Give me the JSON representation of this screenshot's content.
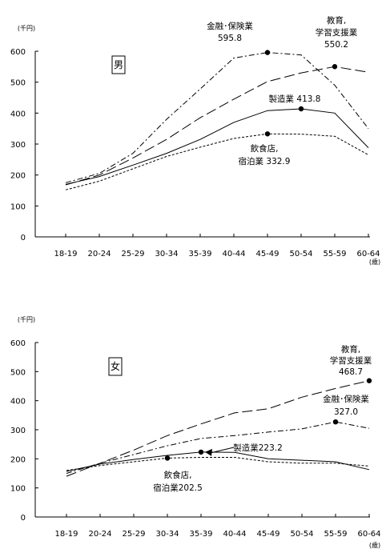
{
  "chart_data": [
    {
      "type": "line",
      "panel_label": "男",
      "y_unit": "(千円)",
      "x_unit": "(歳)",
      "ylim": [
        0,
        600
      ],
      "yticks": [
        0,
        100,
        200,
        300,
        400,
        500,
        600
      ],
      "grid": false,
      "categories": [
        "18-19",
        "20-24",
        "25-29",
        "30-34",
        "35-39",
        "40-44",
        "45-49",
        "50-54",
        "55-59",
        "60-64"
      ],
      "series": [
        {
          "key": "finance",
          "values": [
            175,
            205,
            270,
            380,
            478,
            578,
            595.8,
            588,
            490,
            350
          ]
        },
        {
          "key": "education",
          "values": [
            168,
            200,
            255,
            315,
            385,
            445,
            502,
            530,
            550.2,
            532
          ]
        },
        {
          "key": "manufacturing",
          "values": [
            170,
            195,
            232,
            270,
            315,
            370,
            408,
            413.8,
            400,
            288
          ]
        },
        {
          "key": "food",
          "values": [
            152,
            180,
            220,
            260,
            290,
            318,
            332.9,
            332,
            325,
            265
          ]
        }
      ],
      "annotations": [
        {
          "series": "finance",
          "x": "45-49",
          "lines": [
            "金融･保険業",
            "595.8"
          ]
        },
        {
          "series": "education",
          "x": "55-59",
          "lines": [
            "教育,",
            "学習支援業",
            "550.2"
          ]
        },
        {
          "series": "manufacturing",
          "x": "50-54",
          "lines": [
            "製造業 413.8"
          ]
        },
        {
          "series": "food",
          "x": "45-49",
          "lines": [
            "飲食店,",
            "宿泊業 332.9"
          ]
        }
      ]
    },
    {
      "type": "line",
      "panel_label": "女",
      "y_unit": "(千円)",
      "x_unit": "(歳)",
      "ylim": [
        0,
        600
      ],
      "yticks": [
        0,
        100,
        200,
        300,
        400,
        500,
        600
      ],
      "grid": false,
      "categories": [
        "18-19",
        "20-24",
        "25-29",
        "30-34",
        "35-39",
        "40-44",
        "45-49",
        "50-54",
        "55-59",
        "60-64"
      ],
      "series": [
        {
          "key": "education",
          "values": [
            140,
            185,
            230,
            280,
            320,
            358,
            372,
            412,
            442,
            468.7
          ]
        },
        {
          "key": "finance",
          "values": [
            150,
            185,
            215,
            245,
            270,
            280,
            292,
            303,
            327.0,
            305
          ]
        },
        {
          "key": "manufacturing",
          "values": [
            157,
            182,
            198,
            212,
            223.2,
            222,
            200,
            195,
            190,
            163
          ]
        },
        {
          "key": "food",
          "values": [
            160,
            177,
            190,
            202.5,
            205,
            205,
            190,
            185,
            185,
            175
          ]
        }
      ],
      "annotations": [
        {
          "series": "education",
          "x": "60-64",
          "lines": [
            "教育,",
            "学習支援業",
            "468.7"
          ]
        },
        {
          "series": "finance",
          "x": "55-59",
          "lines": [
            "金融･保険業",
            "327.0"
          ]
        },
        {
          "series": "manufacturing",
          "x": "35-39",
          "lines": [
            "製造業223.2"
          ]
        },
        {
          "series": "food",
          "x": "30-34",
          "lines": [
            "飲食店,",
            "宿泊業202.5"
          ]
        }
      ]
    }
  ]
}
